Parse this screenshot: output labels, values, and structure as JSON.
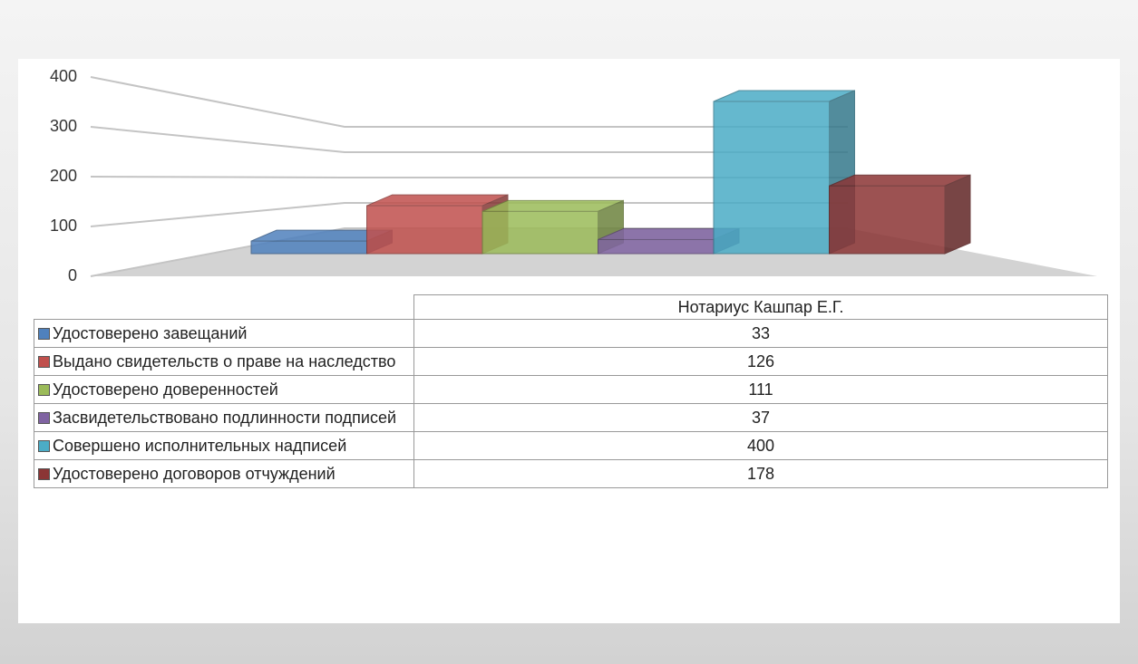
{
  "chart_data": {
    "type": "bar3d",
    "categories": [
      "Нотариус Кашпар Е.Г."
    ],
    "series": [
      {
        "name": "Удостоверено завещаний",
        "color": "#4f81bd",
        "values": [
          33
        ]
      },
      {
        "name": "Выдано свидетельств о праве на наследство",
        "color": "#c0504d",
        "values": [
          126
        ]
      },
      {
        "name": "Удостоверено доверенностей",
        "color": "#9bbb59",
        "values": [
          111
        ]
      },
      {
        "name": "Засвидетельствовано подлинности подписей",
        "color": "#8064a2",
        "values": [
          37
        ]
      },
      {
        "name": "Совершено исполнительных надписей",
        "color": "#4bacc6",
        "values": [
          400
        ]
      },
      {
        "name": "Удостоверено договоров отчуждений",
        "color": "#8b3535",
        "values": [
          178
        ]
      }
    ],
    "ylim": [
      0,
      400
    ],
    "yticks": [
      0,
      100,
      200,
      300,
      400
    ],
    "grid": true,
    "data_table": true
  }
}
